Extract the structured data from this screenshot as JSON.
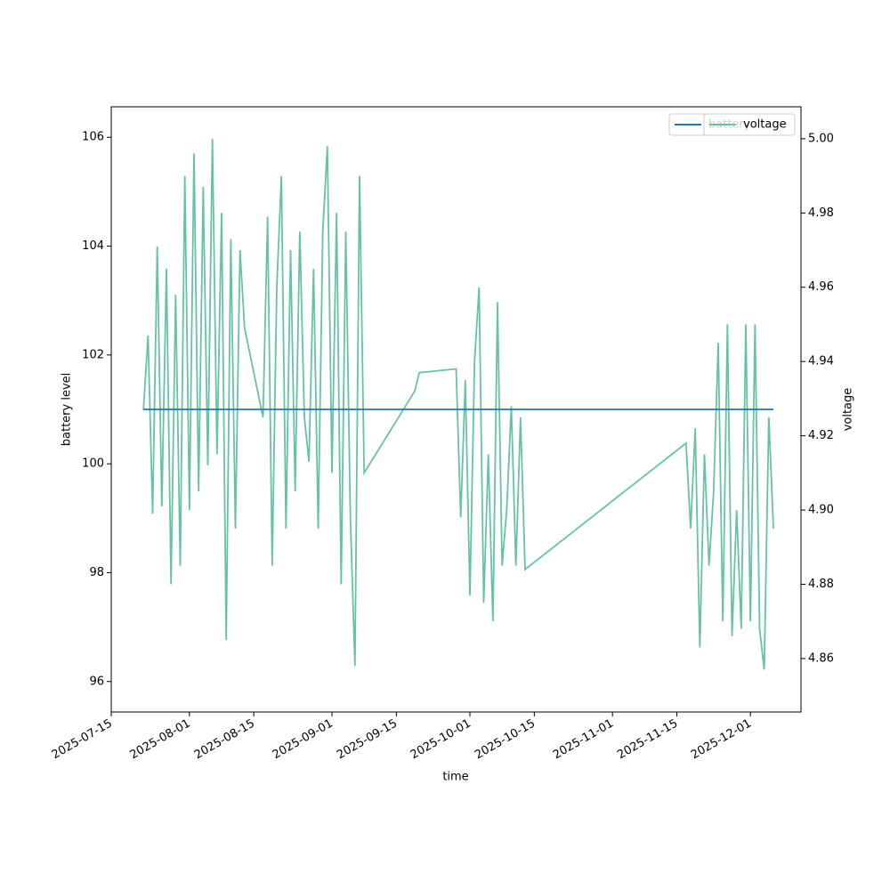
{
  "chart_data": {
    "type": "line",
    "xlabel": "time",
    "ylabel": "battery level",
    "y2label": "voltage",
    "xlim": [
      "2025-07-15",
      "2025-12-12"
    ],
    "xticks": [
      "2025-07-15",
      "2025-08-01",
      "2025-08-15",
      "2025-09-01",
      "2025-09-15",
      "2025-10-01",
      "2025-10-15",
      "2025-11-01",
      "2025-11-15",
      "2025-12-01"
    ],
    "ylim": [
      95.44,
      106.56
    ],
    "yticks": [
      96,
      98,
      100,
      102,
      104,
      106
    ],
    "y2lim": [
      4.8456,
      5.0086
    ],
    "y2ticks": [
      4.86,
      4.88,
      {
        "value": 4.9,
        "label": "4.90"
      },
      4.92,
      4.94,
      4.96,
      4.98,
      {
        "value": 5,
        "label": "5.00"
      }
    ],
    "series": [
      {
        "name": "battery",
        "color": "#1f77b4",
        "x": [
          "2025-07-22",
          "2025-12-06"
        ],
        "values": [
          101,
          101
        ]
      },
      {
        "name": "voltage",
        "color": "#66c2a5",
        "axis": "y2",
        "x": [
          "2025-07-22",
          "2025-07-23",
          "2025-07-24",
          "2025-07-25",
          "2025-07-26",
          "2025-07-27",
          "2025-07-28",
          "2025-07-29",
          "2025-07-30",
          "2025-07-31",
          "2025-08-01",
          "2025-08-02",
          "2025-08-03",
          "2025-08-04",
          "2025-08-05",
          "2025-08-06",
          "2025-08-07",
          "2025-08-08",
          "2025-08-09",
          "2025-08-10",
          "2025-08-11",
          "2025-08-12",
          "2025-08-13",
          "2025-08-17",
          "2025-08-18",
          "2025-08-19",
          "2025-08-20",
          "2025-08-21",
          "2025-08-22",
          "2025-08-23",
          "2025-08-24",
          "2025-08-25",
          "2025-08-26",
          "2025-08-27",
          "2025-08-28",
          "2025-08-29",
          "2025-08-30",
          "2025-08-31",
          "2025-09-01",
          "2025-09-02",
          "2025-09-03",
          "2025-09-04",
          "2025-09-05",
          "2025-09-06",
          "2025-09-07",
          "2025-09-08",
          "2025-09-19",
          "2025-09-20",
          "2025-09-28",
          "2025-09-29",
          "2025-09-30",
          "2025-10-01",
          "2025-10-02",
          "2025-10-03",
          "2025-10-04",
          "2025-10-05",
          "2025-10-06",
          "2025-10-07",
          "2025-10-08",
          "2025-10-09",
          "2025-10-10",
          "2025-10-11",
          "2025-10-12",
          "2025-10-13",
          "2025-11-17",
          "2025-11-18",
          "2025-11-19",
          "2025-11-20",
          "2025-11-21",
          "2025-11-22",
          "2025-11-23",
          "2025-11-24",
          "2025-11-25",
          "2025-11-26",
          "2025-11-27",
          "2025-11-28",
          "2025-11-29",
          "2025-11-30",
          "2025-12-01",
          "2025-12-02",
          "2025-12-03",
          "2025-12-04",
          "2025-12-05",
          "2025-12-06"
        ],
        "values": [
          4.927,
          4.947,
          4.899,
          4.971,
          4.901,
          4.965,
          4.88,
          4.958,
          4.885,
          4.99,
          4.9,
          4.996,
          4.905,
          4.987,
          4.912,
          5.0,
          4.915,
          4.98,
          4.865,
          4.973,
          4.895,
          4.97,
          4.949,
          4.925,
          4.979,
          4.885,
          4.96,
          4.99,
          4.895,
          4.97,
          4.905,
          4.975,
          4.925,
          4.913,
          4.965,
          4.895,
          4.975,
          4.998,
          4.91,
          4.98,
          4.88,
          4.975,
          4.898,
          4.858,
          4.99,
          4.91,
          4.932,
          4.937,
          4.938,
          4.898,
          4.935,
          4.877,
          4.94,
          4.96,
          4.875,
          4.915,
          4.87,
          4.956,
          4.885,
          4.9,
          4.928,
          4.885,
          4.925,
          4.884,
          4.918,
          4.895,
          4.922,
          4.863,
          4.915,
          4.885,
          4.905,
          4.945,
          4.87,
          4.95,
          4.866,
          4.9,
          4.868,
          4.95,
          4.87,
          4.95,
          4.868,
          4.857,
          4.925,
          4.895
        ]
      }
    ]
  }
}
